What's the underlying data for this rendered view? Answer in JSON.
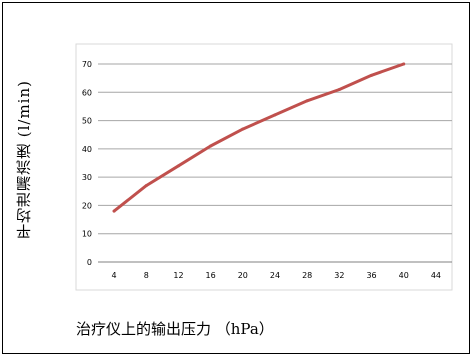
{
  "chart_data": {
    "type": "line",
    "title": "",
    "xlabel": "治疗仪上的输出压力 （hPa）",
    "ylabel": "平均泄漏流速 (l/min)",
    "x_ticks": [
      4,
      8,
      12,
      16,
      20,
      24,
      28,
      32,
      36,
      40,
      44
    ],
    "y_ticks": [
      0,
      10,
      20,
      30,
      40,
      50,
      60,
      70
    ],
    "xlim": [
      2,
      46
    ],
    "ylim": [
      0,
      70
    ],
    "grid": "horizontal",
    "legend": "none",
    "series": [
      {
        "color": "#c0504d",
        "x": [
          4,
          8,
          12,
          16,
          20,
          24,
          28,
          32,
          36,
          40
        ],
        "y": [
          18,
          27,
          34,
          41,
          47,
          52,
          57,
          61,
          66,
          70
        ]
      }
    ]
  }
}
